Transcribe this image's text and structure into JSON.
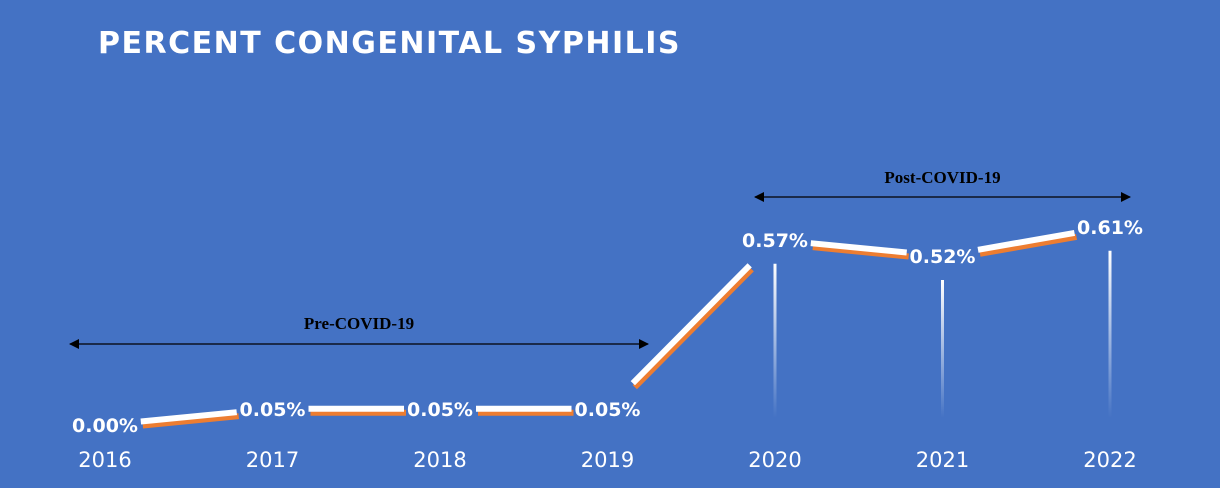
{
  "chart_data": {
    "type": "line",
    "title": "PERCENT CONGENITAL SYPHILIS",
    "categories": [
      "2016",
      "2017",
      "2018",
      "2019",
      "2020",
      "2021",
      "2022"
    ],
    "values": [
      0.0,
      0.05,
      0.05,
      0.05,
      0.57,
      0.52,
      0.61
    ],
    "data_labels": [
      "0.00%",
      "0.05%",
      "0.05%",
      "0.05%",
      "0.57%",
      "0.52%",
      "0.61%"
    ],
    "annotations": [
      {
        "label": "Pre-COVID-19",
        "from": "2016",
        "to": "2019"
      },
      {
        "label": "Post-COVID-19",
        "from": "2020",
        "to": "2022"
      }
    ],
    "xlabel": "",
    "ylabel": "",
    "grid": false,
    "colors": {
      "background": "#4472c4",
      "line": "#ffffff",
      "shadow": "#ed7d31",
      "text": "#ffffff",
      "arrow": "#000000"
    }
  }
}
